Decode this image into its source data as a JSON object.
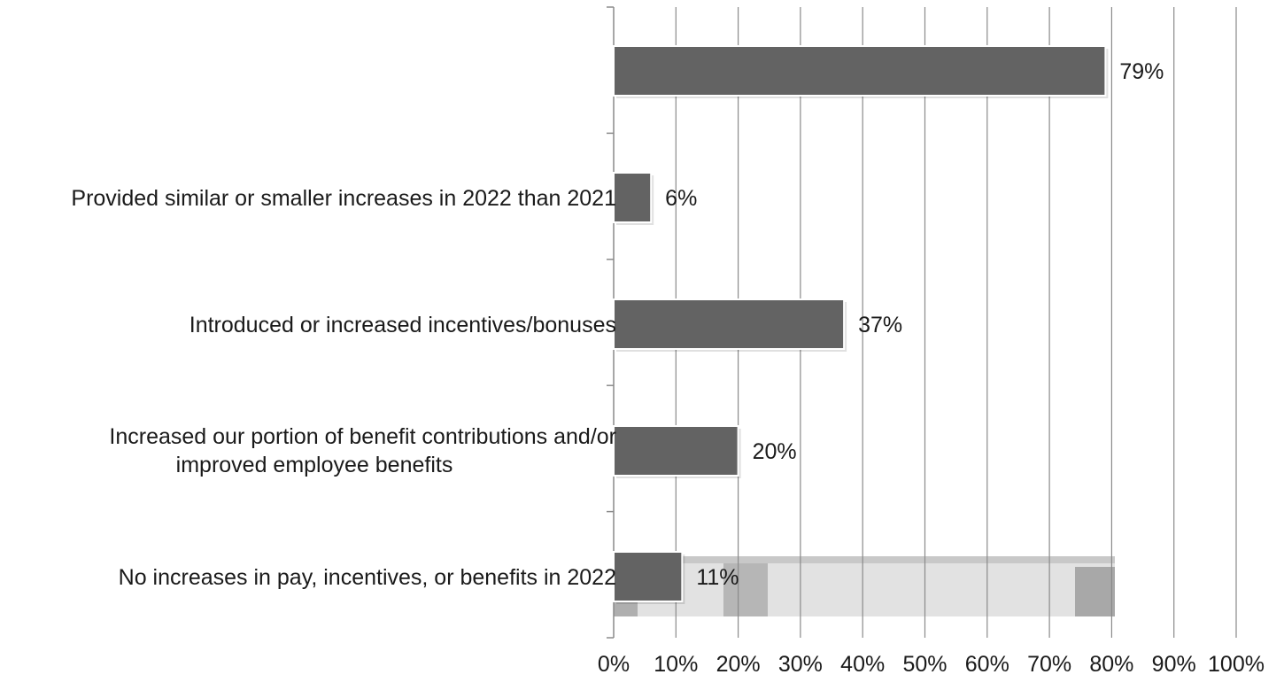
{
  "chart_data": {
    "type": "bar",
    "orientation": "horizontal",
    "title": "",
    "xlabel": "",
    "ylabel": "",
    "categories": [
      "",
      "Provided similar or smaller increases in 2022 than 2021",
      "Introduced or increased incentives/bonuses",
      "Increased our portion of benefit contributions and/or improved employee benefits",
      "No increases in pay, incentives, or benefits in 2022"
    ],
    "values": [
      79,
      6,
      37,
      20,
      11
    ],
    "value_labels": [
      "79%",
      "6%",
      "37%",
      "20%",
      "11%"
    ],
    "xlim": [
      0,
      100
    ],
    "x_ticks": [
      0,
      10,
      20,
      30,
      40,
      50,
      60,
      70,
      80,
      90,
      100
    ],
    "x_tick_labels": [
      "0%",
      "10%",
      "20%",
      "30%",
      "40%",
      "50%",
      "60%",
      "70%",
      "80%",
      "90%",
      "100%"
    ],
    "grid": "vertical",
    "legend": "none",
    "colors": {
      "bar": "#636363",
      "bar_edge": "#ffffff",
      "grid": "#8a8a8a",
      "axis": "#8a8a8a",
      "text": "#1a1a1a",
      "artifact_light": "#e2e2e2",
      "artifact_mid": "#9a9a9a"
    }
  }
}
